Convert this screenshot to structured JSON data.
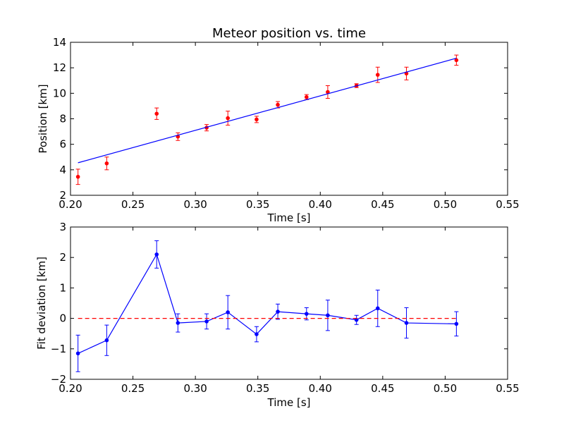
{
  "chart_data": [
    {
      "type": "scatter",
      "title": "Meteor position vs. time",
      "xlabel": "Time [s]",
      "ylabel": "Position [km]",
      "xlim": [
        0.2,
        0.55
      ],
      "ylim": [
        2,
        14
      ],
      "xticks": [
        "0.20",
        "0.25",
        "0.30",
        "0.35",
        "0.40",
        "0.45",
        "0.50",
        "0.55"
      ],
      "yticks": [
        "2",
        "4",
        "6",
        "8",
        "10",
        "12",
        "14"
      ],
      "grid": false,
      "series": [
        {
          "kind": "errorbar",
          "color": "#ff0000",
          "x": [
            0.206,
            0.229,
            0.269,
            0.286,
            0.309,
            0.326,
            0.349,
            0.366,
            0.389,
            0.406,
            0.429,
            0.446,
            0.469,
            0.509
          ],
          "y": [
            3.45,
            4.5,
            8.4,
            6.6,
            7.3,
            8.05,
            7.95,
            9.1,
            9.7,
            10.1,
            10.6,
            11.45,
            11.55,
            12.6
          ],
          "yerr": [
            0.6,
            0.5,
            0.45,
            0.3,
            0.25,
            0.55,
            0.25,
            0.25,
            0.2,
            0.5,
            0.15,
            0.6,
            0.5,
            0.4
          ]
        },
        {
          "kind": "fit-line",
          "color": "#0000ff",
          "x": [
            0.206,
            0.509
          ],
          "y": [
            4.55,
            12.75
          ]
        }
      ]
    },
    {
      "type": "line",
      "title": "",
      "xlabel": "Time [s]",
      "ylabel": "Fit deviation [km]",
      "xlim": [
        0.2,
        0.55
      ],
      "ylim": [
        -2,
        3
      ],
      "xticks": [
        "0.20",
        "0.25",
        "0.30",
        "0.35",
        "0.40",
        "0.45",
        "0.50",
        "0.55"
      ],
      "yticks": [
        "−2",
        "−1",
        "0",
        "1",
        "2",
        "3"
      ],
      "grid": false,
      "series": [
        {
          "kind": "errorbar-line",
          "color": "#0000ff",
          "x": [
            0.206,
            0.229,
            0.269,
            0.286,
            0.309,
            0.326,
            0.349,
            0.366,
            0.389,
            0.406,
            0.429,
            0.446,
            0.469,
            0.509
          ],
          "y": [
            -1.15,
            -0.72,
            2.1,
            -0.15,
            -0.1,
            0.2,
            -0.52,
            0.22,
            0.15,
            0.1,
            -0.05,
            0.33,
            -0.15,
            -0.18
          ],
          "yerr": [
            0.6,
            0.5,
            0.45,
            0.3,
            0.25,
            0.55,
            0.25,
            0.25,
            0.2,
            0.5,
            0.15,
            0.6,
            0.5,
            0.4
          ]
        },
        {
          "kind": "reference-line",
          "color": "#ff0000",
          "style": "dashed",
          "x": [
            0.206,
            0.509
          ],
          "y": [
            0,
            0
          ]
        }
      ]
    }
  ]
}
